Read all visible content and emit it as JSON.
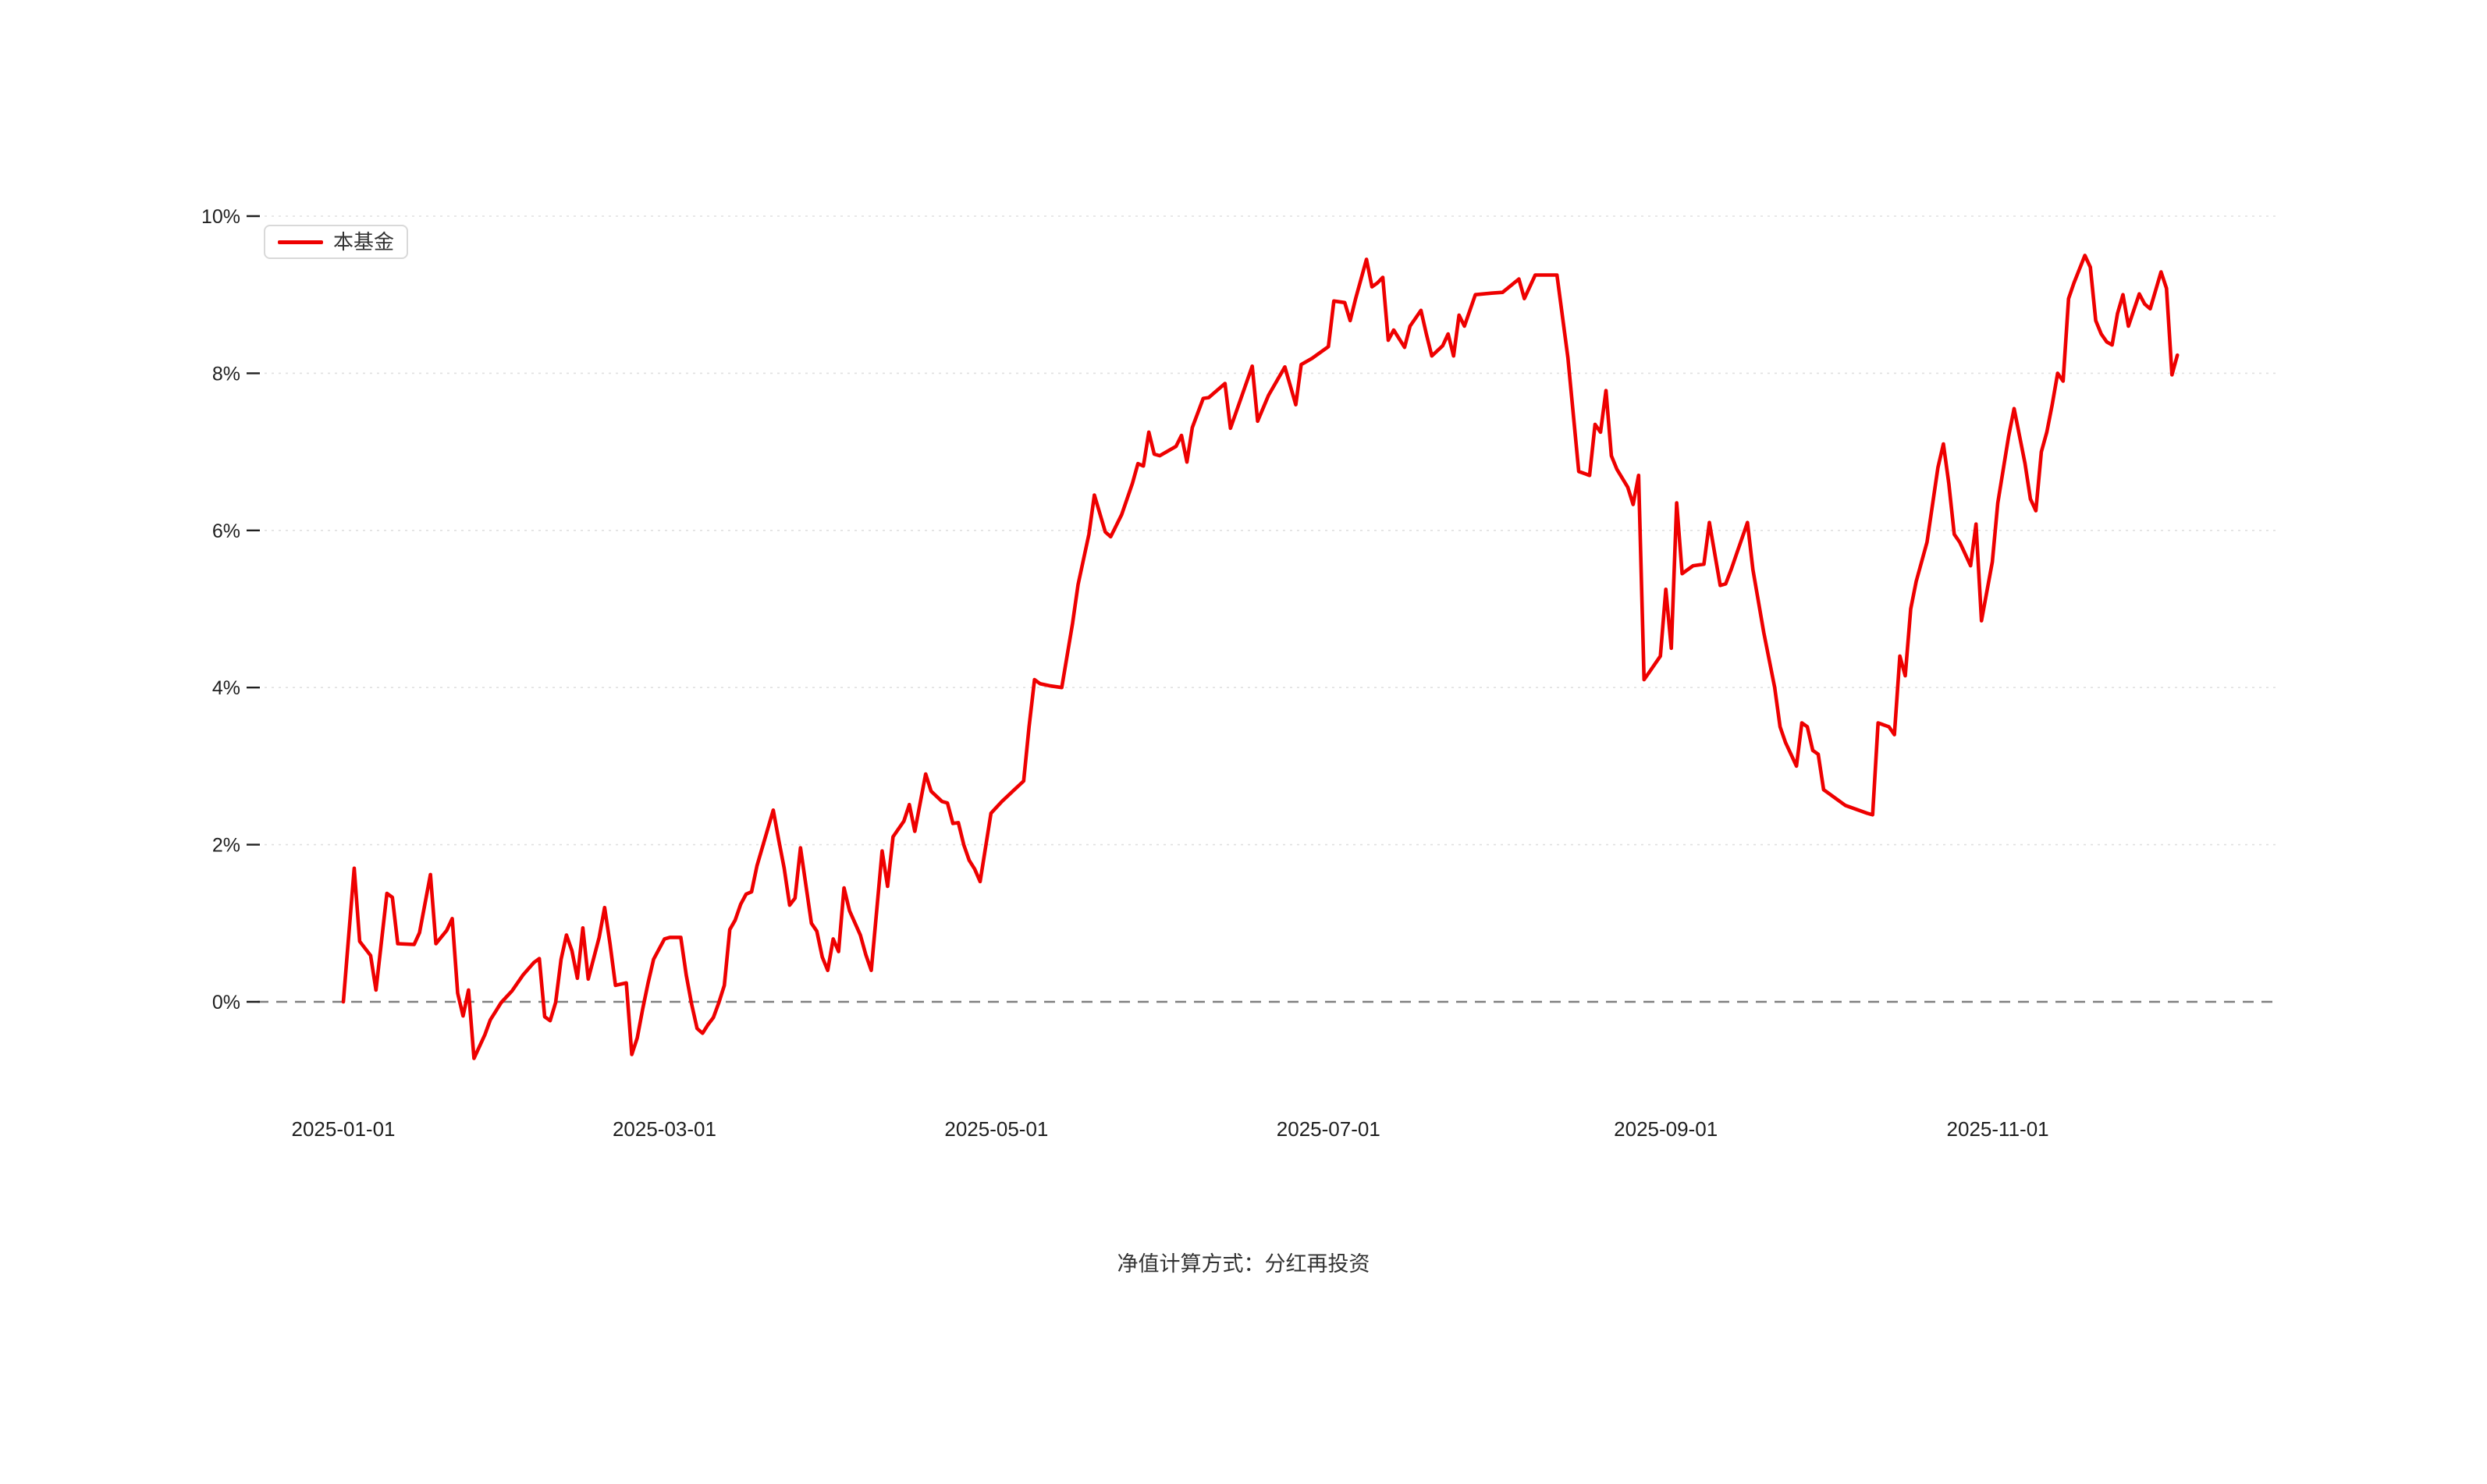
{
  "footer": {
    "note": "净值计算方式：分红再投资"
  },
  "colors": {
    "line": "#ee0000",
    "gridline": "#e0e0e0",
    "zero_line": "#808080",
    "tick_text": "#1f1f1f",
    "legend_border": "#d9d9d9"
  },
  "chart_data": {
    "type": "line",
    "title": "",
    "legend_position": "top-left",
    "grid": "dotted-horizontal",
    "y_axis": {
      "unit": "%",
      "ticks": [
        0,
        2,
        4,
        6,
        8,
        10
      ],
      "range": [
        -1.3,
        10.4
      ],
      "zero_line": "dashed"
    },
    "x_axis": {
      "tick_labels": [
        "2025-01-01",
        "2025-03-01",
        "2025-05-01",
        "2025-07-01",
        "2025-09-01",
        "2025-11-01"
      ]
    },
    "series": [
      {
        "name": "本基金",
        "color": "#ee0000",
        "points": [
          [
            "2025-01-01",
            0
          ],
          [
            "2025-01-03",
            1.7
          ],
          [
            "2025-01-04",
            0.77
          ],
          [
            "2025-01-06",
            0.59
          ],
          [
            "2025-01-07",
            0.15
          ],
          [
            "2025-01-09",
            1.38
          ],
          [
            "2025-01-10",
            1.33
          ],
          [
            "2025-01-11",
            0.74
          ],
          [
            "2025-01-14",
            0.73
          ],
          [
            "2025-01-15",
            0.88
          ],
          [
            "2025-01-17",
            1.62
          ],
          [
            "2025-01-18",
            0.74
          ],
          [
            "2025-01-20",
            0.91
          ],
          [
            "2025-01-21",
            1.06
          ],
          [
            "2025-01-22",
            0.11
          ],
          [
            "2025-01-23",
            -0.18
          ],
          [
            "2025-01-24",
            0.15
          ],
          [
            "2025-01-25",
            -0.72
          ],
          [
            "2025-01-27",
            -0.42
          ],
          [
            "2025-01-28",
            -0.23
          ],
          [
            "2025-01-30",
            -0.01
          ],
          [
            "2025-02-01",
            0.14
          ],
          [
            "2025-02-03",
            0.34
          ],
          [
            "2025-02-05",
            0.5
          ],
          [
            "2025-02-06",
            0.55
          ],
          [
            "2025-02-07",
            -0.19
          ],
          [
            "2025-02-08",
            -0.24
          ],
          [
            "2025-02-09",
            -0.01
          ],
          [
            "2025-02-10",
            0.54
          ],
          [
            "2025-02-11",
            0.85
          ],
          [
            "2025-02-12",
            0.65
          ],
          [
            "2025-02-13",
            0.3
          ],
          [
            "2025-02-14",
            0.94
          ],
          [
            "2025-02-15",
            0.29
          ],
          [
            "2025-02-17",
            0.82
          ],
          [
            "2025-02-18",
            1.2
          ],
          [
            "2025-02-19",
            0.74
          ],
          [
            "2025-02-20",
            0.21
          ],
          [
            "2025-02-22",
            0.24
          ],
          [
            "2025-02-23",
            -0.67
          ],
          [
            "2025-02-24",
            -0.46
          ],
          [
            "2025-02-25",
            -0.09
          ],
          [
            "2025-02-26",
            0.24
          ],
          [
            "2025-02-27",
            0.54
          ],
          [
            "2025-03-01",
            0.8
          ],
          [
            "2025-03-02",
            0.82
          ],
          [
            "2025-03-04",
            0.82
          ],
          [
            "2025-03-05",
            0.34
          ],
          [
            "2025-03-06",
            -0.03
          ],
          [
            "2025-03-07",
            -0.34
          ],
          [
            "2025-03-08",
            -0.4
          ],
          [
            "2025-03-09",
            -0.29
          ],
          [
            "2025-03-10",
            -0.2
          ],
          [
            "2025-03-11",
            -0.01
          ],
          [
            "2025-03-12",
            0.21
          ],
          [
            "2025-03-13",
            0.92
          ],
          [
            "2025-03-14",
            1.04
          ],
          [
            "2025-03-15",
            1.24
          ],
          [
            "2025-03-16",
            1.37
          ],
          [
            "2025-03-17",
            1.4
          ],
          [
            "2025-03-18",
            1.73
          ],
          [
            "2025-03-21",
            2.44
          ],
          [
            "2025-03-22",
            2.06
          ],
          [
            "2025-03-23",
            1.7
          ],
          [
            "2025-03-24",
            1.23
          ],
          [
            "2025-03-25",
            1.32
          ],
          [
            "2025-03-26",
            1.96
          ],
          [
            "2025-03-28",
            1.0
          ],
          [
            "2025-03-29",
            0.9
          ],
          [
            "2025-03-30",
            0.57
          ],
          [
            "2025-03-31",
            0.4
          ],
          [
            "2025-04-01",
            0.8
          ],
          [
            "2025-04-02",
            0.64
          ],
          [
            "2025-04-03",
            1.45
          ],
          [
            "2025-04-04",
            1.16
          ],
          [
            "2025-04-06",
            0.85
          ],
          [
            "2025-04-07",
            0.6
          ],
          [
            "2025-04-08",
            0.4
          ],
          [
            "2025-04-10",
            1.92
          ],
          [
            "2025-04-11",
            1.47
          ],
          [
            "2025-04-12",
            2.1
          ],
          [
            "2025-04-14",
            2.3
          ],
          [
            "2025-04-15",
            2.51
          ],
          [
            "2025-04-16",
            2.17
          ],
          [
            "2025-04-18",
            2.9
          ],
          [
            "2025-04-19",
            2.68
          ],
          [
            "2025-04-21",
            2.55
          ],
          [
            "2025-04-22",
            2.53
          ],
          [
            "2025-04-23",
            2.27
          ],
          [
            "2025-04-24",
            2.28
          ],
          [
            "2025-04-25",
            2.0
          ],
          [
            "2025-04-26",
            1.8
          ],
          [
            "2025-04-27",
            1.69
          ],
          [
            "2025-04-28",
            1.53
          ],
          [
            "2025-04-30",
            2.4
          ],
          [
            "2025-05-02",
            2.55
          ],
          [
            "2025-05-04",
            2.68
          ],
          [
            "2025-05-06",
            2.81
          ],
          [
            "2025-05-07",
            3.5
          ],
          [
            "2025-05-08",
            4.1
          ],
          [
            "2025-05-09",
            4.05
          ],
          [
            "2025-05-11",
            4.02
          ],
          [
            "2025-05-13",
            4.0
          ],
          [
            "2025-05-15",
            4.82
          ],
          [
            "2025-05-16",
            5.31
          ],
          [
            "2025-05-18",
            5.95
          ],
          [
            "2025-05-19",
            6.45
          ],
          [
            "2025-05-21",
            5.98
          ],
          [
            "2025-05-22",
            5.92
          ],
          [
            "2025-05-24",
            6.2
          ],
          [
            "2025-05-26",
            6.6
          ],
          [
            "2025-05-27",
            6.85
          ],
          [
            "2025-05-28",
            6.82
          ],
          [
            "2025-05-29",
            7.25
          ],
          [
            "2025-05-30",
            6.97
          ],
          [
            "2025-05-31",
            6.95
          ],
          [
            "2025-06-02",
            7.03
          ],
          [
            "2025-06-03",
            7.07
          ],
          [
            "2025-06-04",
            7.21
          ],
          [
            "2025-06-05",
            6.87
          ],
          [
            "2025-06-06",
            7.31
          ],
          [
            "2025-06-08",
            7.68
          ],
          [
            "2025-06-09",
            7.69
          ],
          [
            "2025-06-12",
            7.87
          ],
          [
            "2025-06-13",
            7.3
          ],
          [
            "2025-06-17",
            8.09
          ],
          [
            "2025-06-18",
            7.39
          ],
          [
            "2025-06-20",
            7.72
          ],
          [
            "2025-06-23",
            8.08
          ],
          [
            "2025-06-25",
            7.6
          ],
          [
            "2025-06-26",
            8.11
          ],
          [
            "2025-06-28",
            8.19
          ],
          [
            "2025-07-01",
            8.34
          ],
          [
            "2025-07-02",
            8.92
          ],
          [
            "2025-07-04",
            8.9
          ],
          [
            "2025-07-05",
            8.67
          ],
          [
            "2025-07-06",
            8.95
          ],
          [
            "2025-07-08",
            9.45
          ],
          [
            "2025-07-09",
            9.1
          ],
          [
            "2025-07-10",
            9.15
          ],
          [
            "2025-07-11",
            9.22
          ],
          [
            "2025-07-12",
            8.42
          ],
          [
            "2025-07-13",
            8.55
          ],
          [
            "2025-07-15",
            8.33
          ],
          [
            "2025-07-16",
            8.6
          ],
          [
            "2025-07-18",
            8.8
          ],
          [
            "2025-07-19",
            8.5
          ],
          [
            "2025-07-20",
            8.22
          ],
          [
            "2025-07-22",
            8.35
          ],
          [
            "2025-07-23",
            8.5
          ],
          [
            "2025-07-24",
            8.22
          ],
          [
            "2025-07-25",
            8.74
          ],
          [
            "2025-07-26",
            8.6
          ],
          [
            "2025-07-28",
            9.0
          ],
          [
            "2025-07-31",
            9.02
          ],
          [
            "2025-08-02",
            9.03
          ],
          [
            "2025-08-05",
            9.2
          ],
          [
            "2025-08-06",
            8.95
          ],
          [
            "2025-08-08",
            9.25
          ],
          [
            "2025-08-12",
            9.25
          ],
          [
            "2025-08-14",
            8.2
          ],
          [
            "2025-08-16",
            6.75
          ],
          [
            "2025-08-18",
            6.7
          ],
          [
            "2025-08-19",
            7.35
          ],
          [
            "2025-08-20",
            7.25
          ],
          [
            "2025-08-21",
            7.78
          ],
          [
            "2025-08-22",
            6.95
          ],
          [
            "2025-08-23",
            6.78
          ],
          [
            "2025-08-25",
            6.55
          ],
          [
            "2025-08-26",
            6.33
          ],
          [
            "2025-08-27",
            6.7
          ],
          [
            "2025-08-28",
            4.1
          ],
          [
            "2025-08-29",
            4.2
          ],
          [
            "2025-08-31",
            4.4
          ],
          [
            "2025-09-01",
            5.25
          ],
          [
            "2025-09-02",
            4.5
          ],
          [
            "2025-09-03",
            6.35
          ],
          [
            "2025-09-04",
            5.45
          ],
          [
            "2025-09-06",
            5.55
          ],
          [
            "2025-09-08",
            5.57
          ],
          [
            "2025-09-09",
            6.1
          ],
          [
            "2025-09-11",
            5.3
          ],
          [
            "2025-09-12",
            5.32
          ],
          [
            "2025-09-13",
            5.5
          ],
          [
            "2025-09-14",
            5.7
          ],
          [
            "2025-09-16",
            6.1
          ],
          [
            "2025-09-17",
            5.5
          ],
          [
            "2025-09-19",
            4.7
          ],
          [
            "2025-09-21",
            4.0
          ],
          [
            "2025-09-22",
            3.5
          ],
          [
            "2025-09-23",
            3.3
          ],
          [
            "2025-09-25",
            3.0
          ],
          [
            "2025-09-26",
            3.55
          ],
          [
            "2025-09-27",
            3.5
          ],
          [
            "2025-09-28",
            3.2
          ],
          [
            "2025-09-29",
            3.15
          ],
          [
            "2025-09-30",
            2.7
          ],
          [
            "2025-10-02",
            2.6
          ],
          [
            "2025-10-04",
            2.5
          ],
          [
            "2025-10-06",
            2.45
          ],
          [
            "2025-10-08",
            2.4
          ],
          [
            "2025-10-09",
            2.38
          ],
          [
            "2025-10-10",
            3.55
          ],
          [
            "2025-10-12",
            3.5
          ],
          [
            "2025-10-13",
            3.4
          ],
          [
            "2025-10-14",
            4.4
          ],
          [
            "2025-10-15",
            4.15
          ],
          [
            "2025-10-16",
            5.0
          ],
          [
            "2025-10-17",
            5.35
          ],
          [
            "2025-10-19",
            5.85
          ],
          [
            "2025-10-21",
            6.8
          ],
          [
            "2025-10-22",
            7.1
          ],
          [
            "2025-10-23",
            6.6
          ],
          [
            "2025-10-24",
            5.95
          ],
          [
            "2025-10-25",
            5.85
          ],
          [
            "2025-10-26",
            5.7
          ],
          [
            "2025-10-27",
            5.55
          ],
          [
            "2025-10-28",
            6.08
          ],
          [
            "2025-10-29",
            4.85
          ],
          [
            "2025-10-31",
            5.6
          ],
          [
            "2025-11-01",
            6.35
          ],
          [
            "2025-11-03",
            7.2
          ],
          [
            "2025-11-04",
            7.55
          ],
          [
            "2025-11-06",
            6.85
          ],
          [
            "2025-11-07",
            6.4
          ],
          [
            "2025-11-08",
            6.25
          ],
          [
            "2025-11-09",
            7.0
          ],
          [
            "2025-11-10",
            7.25
          ],
          [
            "2025-11-11",
            7.6
          ],
          [
            "2025-11-12",
            8.0
          ],
          [
            "2025-11-13",
            7.9
          ],
          [
            "2025-11-14",
            8.95
          ],
          [
            "2025-11-15",
            9.15
          ],
          [
            "2025-11-17",
            9.5
          ],
          [
            "2025-11-18",
            9.35
          ],
          [
            "2025-11-19",
            8.67
          ],
          [
            "2025-11-20",
            8.5
          ],
          [
            "2025-11-21",
            8.4
          ],
          [
            "2025-11-22",
            8.36
          ],
          [
            "2025-11-23",
            8.76
          ],
          [
            "2025-11-24",
            9.0
          ],
          [
            "2025-11-25",
            8.6
          ],
          [
            "2025-11-27",
            9.01
          ],
          [
            "2025-11-28",
            8.88
          ],
          [
            "2025-11-29",
            8.82
          ],
          [
            "2025-12-01",
            9.29
          ],
          [
            "2025-12-02",
            9.08
          ],
          [
            "2025-12-03",
            7.98
          ],
          [
            "2025-12-04",
            8.23
          ]
        ]
      }
    ]
  }
}
